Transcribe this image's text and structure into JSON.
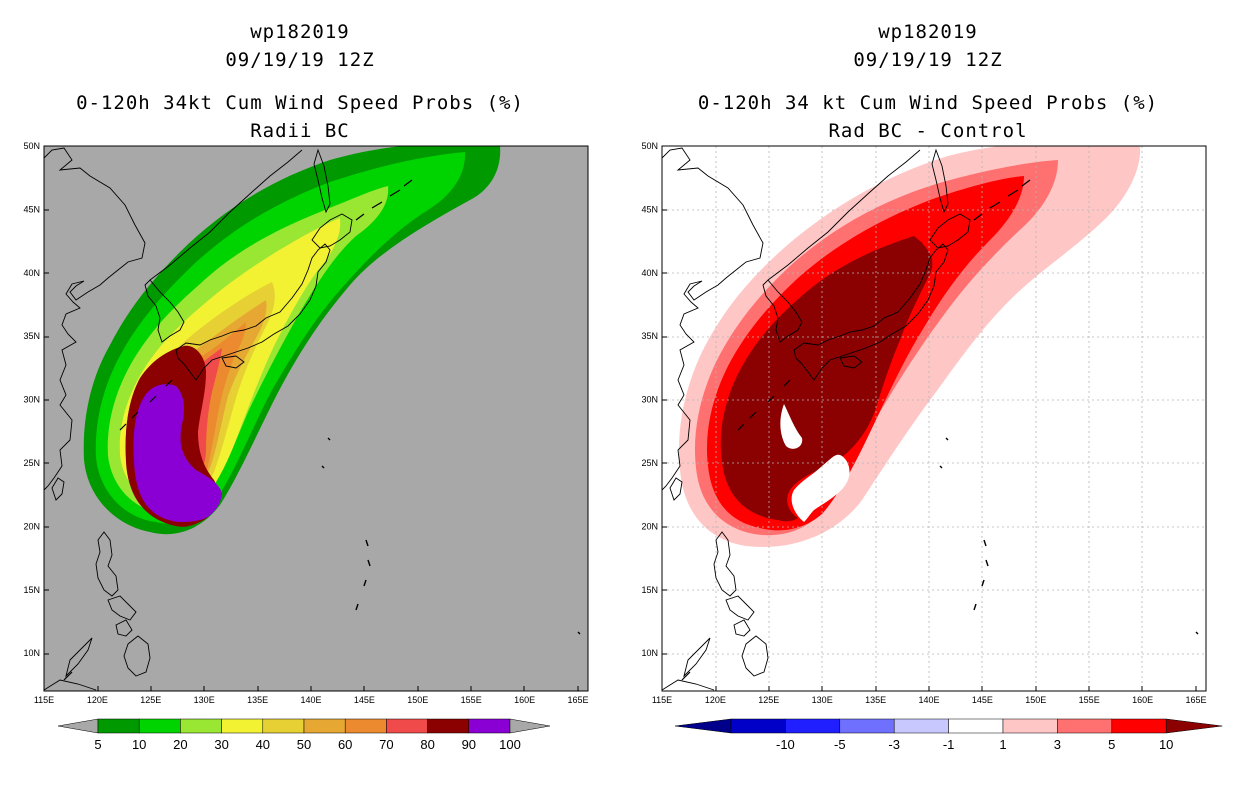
{
  "left_panel": {
    "storm_id": "wp182019",
    "datetime": "09/19/19 12Z",
    "title": "0-120h 34kt Cum Wind Speed Probs (%)",
    "subtitle": "Radii BC",
    "background_color": "#a8a8a8",
    "colorbar": {
      "labels": [
        "5",
        "10",
        "20",
        "30",
        "40",
        "50",
        "60",
        "70",
        "80",
        "90",
        "100"
      ],
      "colors": [
        "#009900",
        "#00d400",
        "#99e633",
        "#f2f233",
        "#e6d033",
        "#e6a833",
        "#ec8a2f",
        "#f04a4a",
        "#8b0000",
        "#8a00d4"
      ],
      "end_color": "#a8a8a8"
    }
  },
  "right_panel": {
    "storm_id": "wp182019",
    "datetime": "09/19/19 12Z",
    "title": "0-120h 34 kt Cum Wind Speed Probs (%)",
    "subtitle": "Rad BC - Control",
    "background_color": "#ffffff",
    "colorbar": {
      "labels": [
        "-10",
        "-5",
        "-3",
        "-1",
        "1",
        "3",
        "5",
        "10"
      ],
      "colors": [
        "#0000c8",
        "#1f1fff",
        "#7070ff",
        "#c8c8ff",
        "#ffffff",
        "#ffc6c6",
        "#ff7070",
        "#ff0000"
      ],
      "low_color": "#00008b",
      "high_color": "#8b0000"
    }
  },
  "axes": {
    "lon_ticks": [
      "115E",
      "120E",
      "125E",
      "130E",
      "135E",
      "140E",
      "145E",
      "150E",
      "155E",
      "160E",
      "165E"
    ],
    "lat_ticks": [
      "50N",
      "45N",
      "40N",
      "35N",
      "30N",
      "25N",
      "20N",
      "15N",
      "10N"
    ],
    "lon_range": [
      115,
      166
    ],
    "lat_range": [
      7,
      50
    ]
  }
}
